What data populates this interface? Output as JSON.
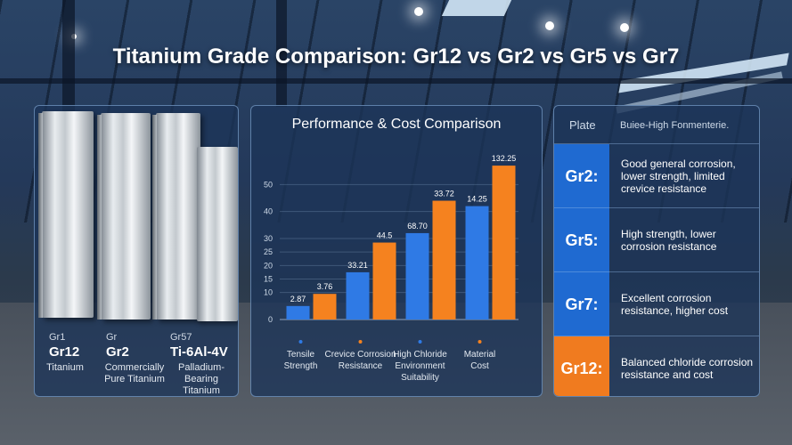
{
  "title": "Titanium Grade Comparison: Gr12 vs Gr2 vs Gr5 vs Gr7",
  "colors": {
    "blue_series": "#2f7ae5",
    "orange_series": "#f5821f"
  },
  "materials": [
    {
      "small": "Gr1",
      "name": "Gr12",
      "desc": "Titanium"
    },
    {
      "small": "Gr",
      "name": "Gr2",
      "desc": "Commercially Pure Titanium"
    },
    {
      "small": "Gr57",
      "name": "Ti-6Al-4V",
      "desc": "Palladium-Bearing Titanium"
    }
  ],
  "chart_data": {
    "type": "bar",
    "title": "Performance & Cost Comparison",
    "categories": [
      "Tensile Strength",
      "Crevice Corrosion Resistance",
      "High Chloride Environment Suitability",
      "Material Cost"
    ],
    "series": [
      {
        "color": "#2f7ae5",
        "values": [
          5,
          17.5,
          32,
          42
        ],
        "labels": [
          "2.87",
          "33.21",
          "68.70",
          "14.25"
        ]
      },
      {
        "color": "#f5821f",
        "values": [
          9.5,
          28.5,
          44,
          57
        ],
        "labels": [
          "3.76",
          "44.5",
          "33.72",
          "132.25"
        ]
      }
    ],
    "yticks": [
      0,
      10,
      15,
      20,
      25,
      30,
      40,
      50
    ],
    "ylim": [
      0,
      60
    ],
    "grid": true,
    "legend": "none"
  },
  "comparison": {
    "header_left": "Plate",
    "header_right": "Buiee-High Fonmenterie.",
    "rows": [
      {
        "grade": "Gr2:",
        "text": "Good general corrosion, lower strength, limited crevice resistance",
        "highlight": false
      },
      {
        "grade": "Gr5:",
        "text": "High strength, lower corrosion resistance",
        "highlight": false
      },
      {
        "grade": "Gr7:",
        "text": "Excellent corrosion resistance, higher cost",
        "highlight": false
      },
      {
        "grade": "Gr12:",
        "text": "Balanced chloride corrosion resistance and cost",
        "highlight": true
      }
    ]
  }
}
